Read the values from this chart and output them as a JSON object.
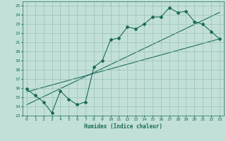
{
  "xlabel": "Humidex (Indice chaleur)",
  "xlim": [
    -0.5,
    23.5
  ],
  "ylim": [
    13,
    25.5
  ],
  "xticks": [
    0,
    1,
    2,
    3,
    4,
    5,
    6,
    7,
    8,
    9,
    10,
    11,
    12,
    13,
    14,
    15,
    16,
    17,
    18,
    19,
    20,
    21,
    22,
    23
  ],
  "yticks": [
    13,
    14,
    15,
    16,
    17,
    18,
    19,
    20,
    21,
    22,
    23,
    24,
    25
  ],
  "bg_color": "#c2e0d8",
  "grid_color": "#9bbfb8",
  "line_color": "#1a6b5a",
  "line1_x": [
    0,
    1,
    2,
    3,
    4,
    5,
    6,
    7,
    8,
    9,
    10,
    11,
    12,
    13,
    14,
    15,
    16,
    17,
    18,
    19,
    20,
    21,
    22,
    23
  ],
  "line1_y": [
    15.9,
    15.2,
    14.5,
    13.3,
    15.7,
    14.8,
    14.2,
    14.5,
    18.3,
    19.0,
    21.3,
    21.5,
    22.7,
    22.5,
    23.0,
    23.8,
    23.8,
    24.8,
    24.3,
    24.4,
    23.3,
    23.0,
    22.2,
    21.4
  ],
  "line2_x": [
    0,
    23
  ],
  "line2_y": [
    15.6,
    21.4
  ],
  "line3_x": [
    0,
    23
  ],
  "line3_y": [
    14.2,
    24.3
  ]
}
